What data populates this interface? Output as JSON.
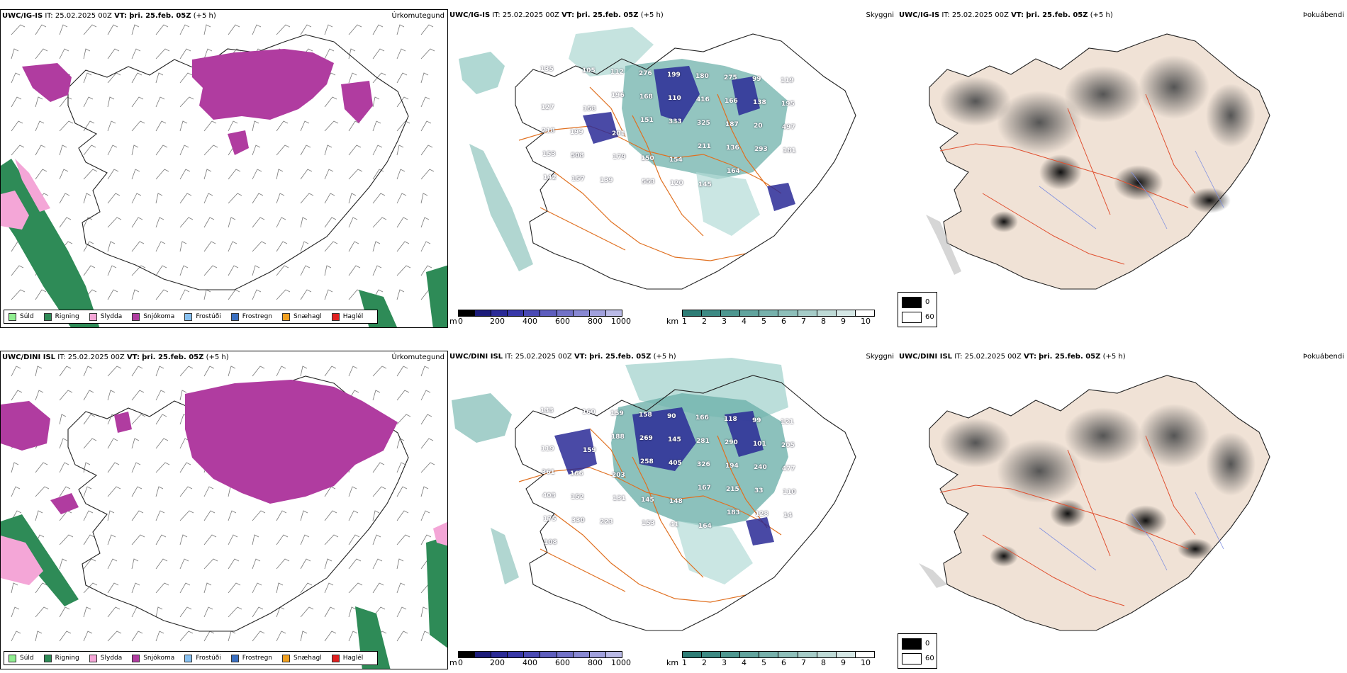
{
  "panels": {
    "r1_precip": {
      "model": "UWC/IG-IS",
      "it_label": "IT:",
      "it": "25.02.2025 00Z",
      "vt_label": "VT:",
      "vt": "þri. 25.feb. 05Z",
      "lead": "(+5 h)",
      "label": "Úrkomutegund"
    },
    "r1_vis": {
      "model": "UWC/IG-IS",
      "it_label": "IT:",
      "it": "25.02.2025 00Z",
      "vt_label": "VT:",
      "vt": "þri. 25.feb. 05Z",
      "lead": "(+5 h)",
      "label": "Skyggni"
    },
    "r1_cloud": {
      "model": "UWC/IG-IS",
      "it_label": "IT:",
      "it": "25.02.2025 00Z",
      "vt_label": "VT:",
      "vt": "þri. 25.feb. 05Z",
      "lead": "(+5 h)",
      "label": "Þokuábendi"
    },
    "r2_precip": {
      "model": "UWC/DINI ISL",
      "it_label": "IT:",
      "it": "25.02.2025 00Z",
      "vt_label": "VT:",
      "vt": "þri. 25.feb. 05Z",
      "lead": "(+5 h)",
      "label": "Úrkomutegund"
    },
    "r2_vis": {
      "model": "UWC/DINI ISL",
      "it_label": "IT:",
      "it": "25.02.2025 00Z",
      "vt_label": "VT:",
      "vt": "þri. 25.feb. 05Z",
      "lead": "(+5 h)",
      "label": "Skyggni"
    },
    "r2_cloud": {
      "model": "UWC/DINI ISL",
      "it_label": "IT:",
      "it": "25.02.2025 00Z",
      "vt_label": "VT:",
      "vt": "þri. 25.feb. 05Z",
      "lead": "(+5 h)",
      "label": "Þokuábendi"
    }
  },
  "precip_legend": [
    {
      "label": "Súld",
      "color": "#90ee90"
    },
    {
      "label": "Rigning",
      "color": "#2e8b57"
    },
    {
      "label": "Slydda",
      "color": "#f4a6d7"
    },
    {
      "label": "Snjókoma",
      "color": "#b03ca0"
    },
    {
      "label": "Frostúði",
      "color": "#87c0f0"
    },
    {
      "label": "Frostregn",
      "color": "#3a6fc0"
    },
    {
      "label": "Snæhagl",
      "color": "#f0a020"
    },
    {
      "label": "Haglél",
      "color": "#e02020"
    }
  ],
  "ceiling_bar": {
    "unit": "m",
    "ticks": [
      "0",
      "200",
      "400",
      "600",
      "800",
      "1000"
    ],
    "colors": [
      "#000000",
      "#1c1c7a",
      "#2a2a96",
      "#3838a8",
      "#4a4ab4",
      "#5e5ebe",
      "#7272c8",
      "#8888d2",
      "#a0a0dc",
      "#babae6"
    ]
  },
  "vis_bar": {
    "unit": "km",
    "ticks": [
      "1",
      "2",
      "3",
      "4",
      "5",
      "6",
      "7",
      "8",
      "9",
      "10"
    ],
    "colors": [
      "#2e7d76",
      "#3d8a84",
      "#4e9790",
      "#62a49e",
      "#77b1ac",
      "#8ebfba",
      "#a6ccc8",
      "#bedad6",
      "#d6e8e6",
      "#ffffff"
    ]
  },
  "cloud_legend": {
    "v0": "0",
    "v60": "60"
  },
  "ceiling_labels": {
    "r1": [
      "135",
      "105",
      "112",
      "276",
      "199",
      "180",
      "275",
      "99",
      "119",
      "127",
      "158",
      "196",
      "168",
      "110",
      "416",
      "166",
      "138",
      "195",
      "218",
      "199",
      "201",
      "151",
      "333",
      "325",
      "187",
      "20",
      "497",
      "153",
      "508",
      "179",
      "150",
      "154",
      "211",
      "136",
      "293",
      "181",
      "142",
      "157",
      "139",
      "553",
      "120",
      "145",
      "164"
    ],
    "r2": [
      "133",
      "160",
      "159",
      "158",
      "90",
      "166",
      "118",
      "99",
      "121",
      "119",
      "159",
      "188",
      "269",
      "145",
      "281",
      "290",
      "101",
      "205",
      "361",
      "166",
      "203",
      "258",
      "405",
      "326",
      "194",
      "240",
      "477",
      "403",
      "152",
      "131",
      "145",
      "148",
      "167",
      "215",
      "33",
      "110",
      "175",
      "330",
      "223",
      "153",
      "41",
      "164",
      "183",
      "128",
      "14",
      "108"
    ]
  }
}
